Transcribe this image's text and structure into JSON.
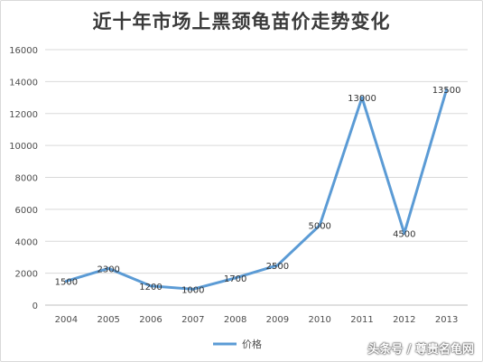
{
  "chart_data": {
    "type": "line",
    "title": "近十年市场上黑颈龟苗价走势变化",
    "categories": [
      "2004",
      "2005",
      "2006",
      "2007",
      "2008",
      "2009",
      "2010",
      "2011",
      "2012",
      "2013"
    ],
    "series": [
      {
        "name": "价格",
        "values": [
          1500,
          2300,
          1200,
          1000,
          1700,
          2500,
          5000,
          13000,
          4500,
          13500
        ]
      }
    ],
    "data_labels": [
      "1500",
      "2300",
      "1200",
      "1000",
      "1700",
      "2500",
      "5000",
      "13000",
      "4500",
      "13500"
    ],
    "yticks": [
      "0",
      "2000",
      "4000",
      "6000",
      "8000",
      "10000",
      "12000",
      "14000",
      "16000"
    ],
    "ylim": [
      0,
      16000
    ],
    "grid": true,
    "legend": "bottom"
  },
  "colors": {
    "series": "#5b9bd5",
    "grid": "#d9d9d9",
    "axis": "#bfbfbf"
  },
  "watermark": "头条号 / 尊贵名龟网"
}
